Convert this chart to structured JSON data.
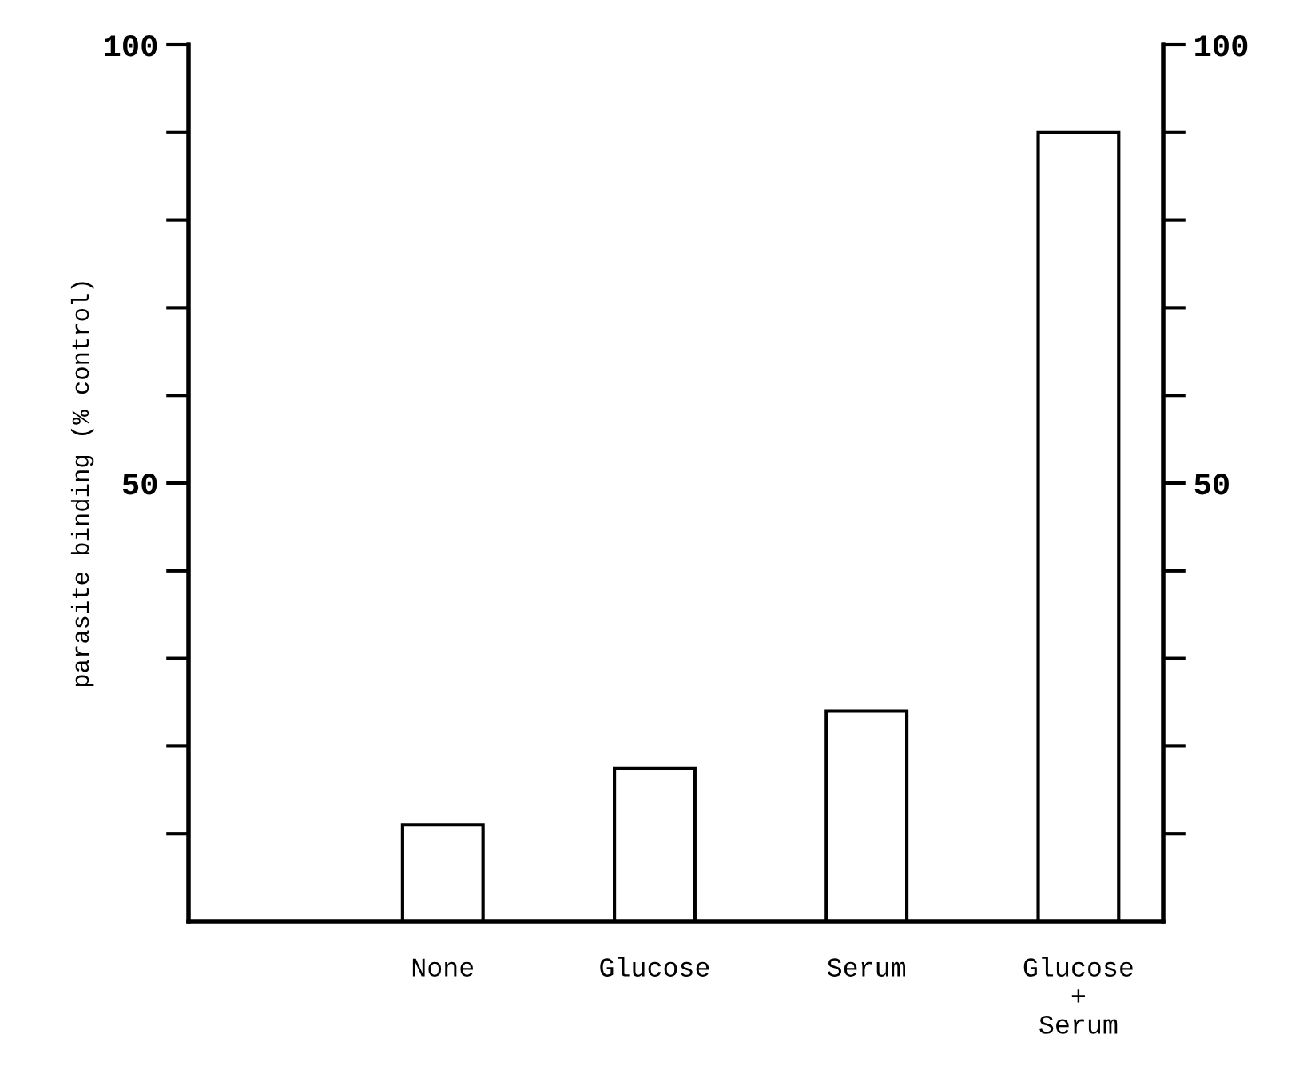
{
  "chart_data": {
    "type": "bar",
    "ylabel": "parasite binding (% control)",
    "categories": [
      "None",
      "Glucose",
      "Serum",
      "Glucose\n+\nSerum"
    ],
    "values": [
      11,
      17.5,
      24,
      90
    ],
    "color": "#ffffff",
    "ylim": [
      0,
      100
    ],
    "yticks": [
      {
        "value": 10,
        "label": null
      },
      {
        "value": 20,
        "label": null
      },
      {
        "value": 30,
        "label": null
      },
      {
        "value": 40,
        "label": null
      },
      50,
      {
        "value": 60,
        "label": null
      },
      {
        "value": 70,
        "label": null
      },
      {
        "value": 80,
        "label": null
      },
      {
        "value": 90,
        "label": null
      },
      100
    ],
    "y2lim": [
      0,
      100
    ],
    "y2ticks": [
      {
        "value": 10,
        "label": null
      },
      {
        "value": 20,
        "label": null
      },
      {
        "value": 30,
        "label": null
      },
      {
        "value": 40,
        "label": null
      },
      50,
      {
        "value": 60,
        "label": null
      },
      {
        "value": 70,
        "label": null
      },
      {
        "value": 80,
        "label": null
      },
      {
        "value": 90,
        "label": null
      },
      100
    ],
    "grid": false,
    "legend": false
  }
}
